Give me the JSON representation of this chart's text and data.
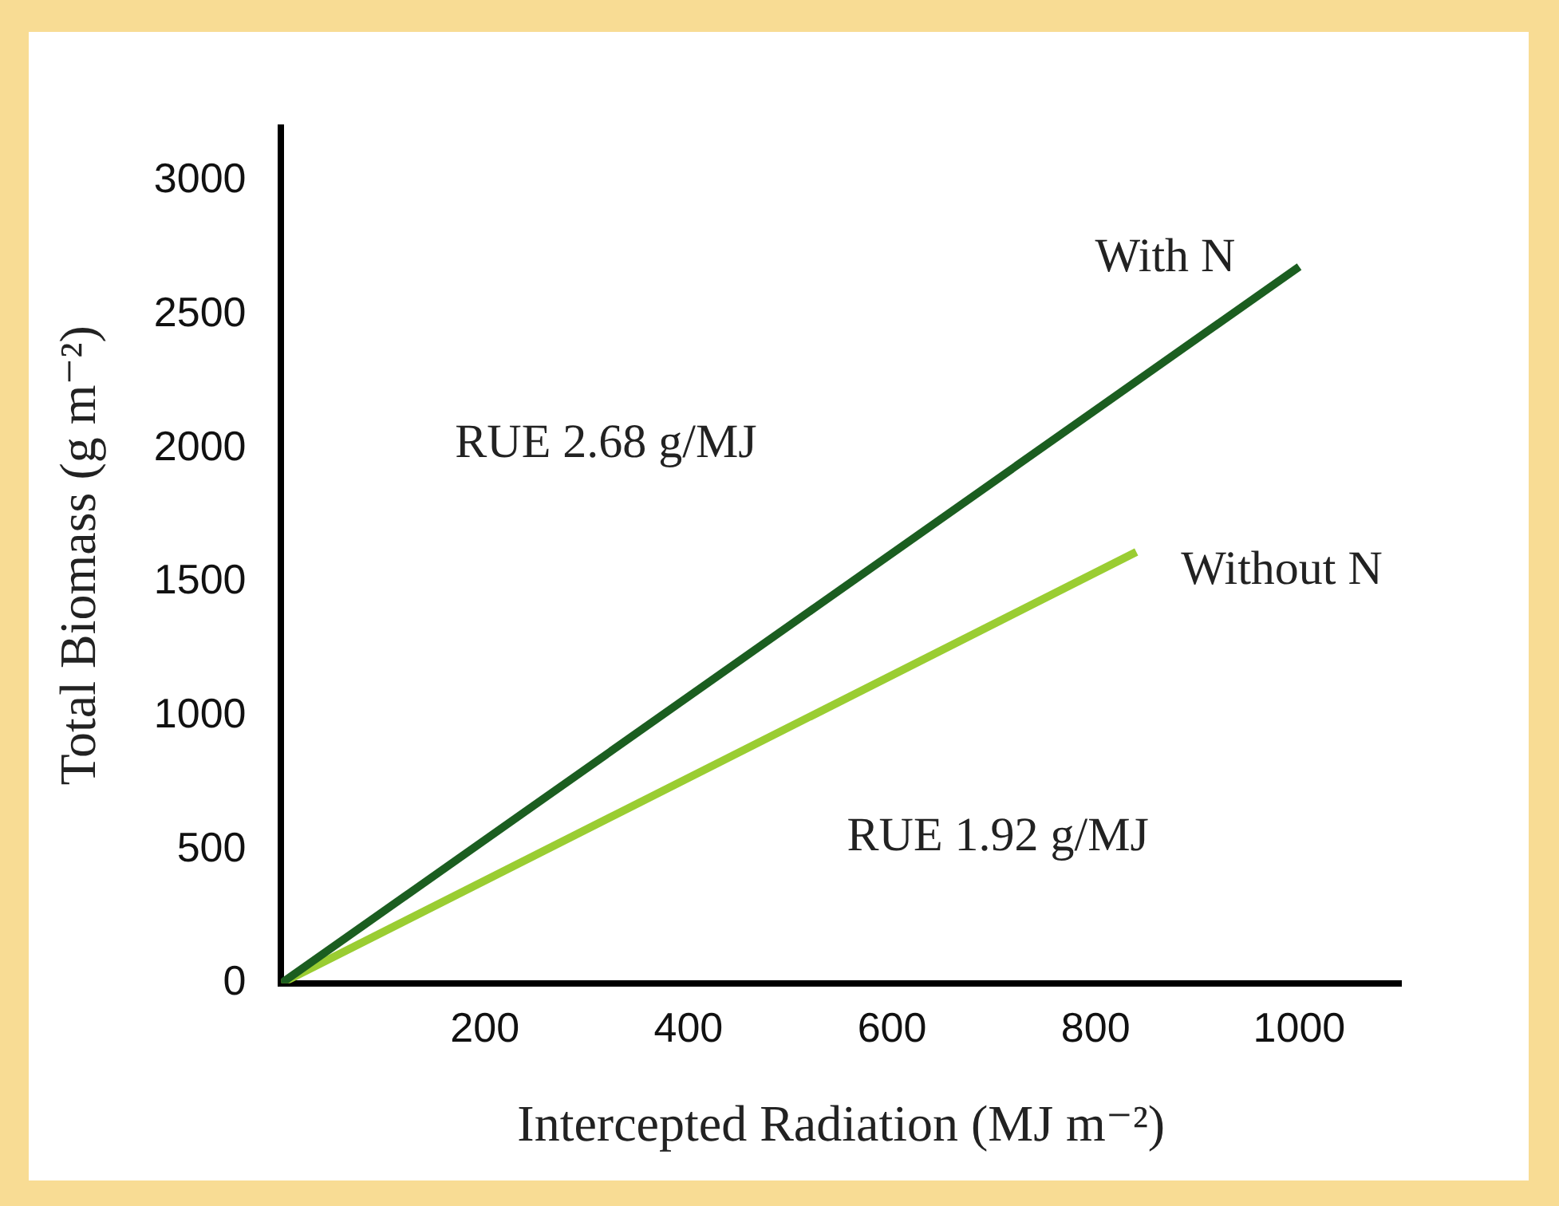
{
  "chart_data": {
    "type": "line",
    "xlabel": "Intercepted Radiation (MJ m⁻²)",
    "ylabel": "Total Biomass (g m⁻²)",
    "xlim": [
      0,
      1100
    ],
    "xticks": [
      200,
      400,
      600,
      800,
      1000
    ],
    "ylim": [
      0,
      3200
    ],
    "yticks": [
      0,
      500,
      1000,
      1500,
      2000,
      2500,
      3000
    ],
    "grid": false,
    "legend": false,
    "marker": "none",
    "line_style": "solid",
    "series": [
      {
        "name": "With N",
        "color": "#1b5e20",
        "x": [
          0,
          1000
        ],
        "values": [
          0,
          2680
        ]
      },
      {
        "name": "Without N",
        "color": "#9acd32",
        "x": [
          0,
          840
        ],
        "values": [
          0,
          1613
        ]
      }
    ],
    "annotations": [
      "RUE 2.68 g/MJ",
      "RUE 1.92 g/MJ"
    ]
  }
}
